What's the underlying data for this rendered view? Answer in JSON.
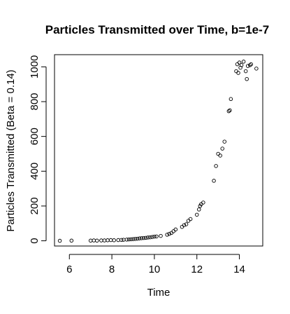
{
  "chart_data": {
    "type": "scatter",
    "title": "Particles Transmitted over Time, b=1e-7",
    "xlabel": "Time",
    "ylabel": "Particles Transmitted (Beta = 0.14)",
    "xlim": [
      5.3,
      15.1
    ],
    "ylim": [
      -30,
      1070
    ],
    "x_ticks": [
      6,
      8,
      10,
      12,
      14
    ],
    "y_ticks": [
      0,
      200,
      400,
      600,
      800,
      1000
    ],
    "grid": false,
    "legend": "none",
    "marker": "open-circle",
    "points": [
      [
        5.55,
        0
      ],
      [
        6.1,
        1
      ],
      [
        7.0,
        1
      ],
      [
        7.15,
        2
      ],
      [
        7.3,
        1
      ],
      [
        7.5,
        2
      ],
      [
        7.65,
        2
      ],
      [
        7.8,
        3
      ],
      [
        7.95,
        4
      ],
      [
        8.1,
        3
      ],
      [
        8.3,
        4
      ],
      [
        8.45,
        5
      ],
      [
        8.55,
        6
      ],
      [
        8.7,
        7
      ],
      [
        8.8,
        8
      ],
      [
        8.9,
        9
      ],
      [
        9.0,
        10
      ],
      [
        9.1,
        11
      ],
      [
        9.2,
        12
      ],
      [
        9.3,
        14
      ],
      [
        9.4,
        15
      ],
      [
        9.5,
        16
      ],
      [
        9.6,
        17
      ],
      [
        9.7,
        19
      ],
      [
        9.8,
        20
      ],
      [
        9.9,
        22
      ],
      [
        10.0,
        24
      ],
      [
        10.1,
        25
      ],
      [
        10.3,
        28
      ],
      [
        10.6,
        35
      ],
      [
        10.7,
        40
      ],
      [
        10.8,
        45
      ],
      [
        10.9,
        55
      ],
      [
        11.0,
        65
      ],
      [
        11.3,
        80
      ],
      [
        11.4,
        90
      ],
      [
        11.5,
        95
      ],
      [
        11.6,
        115
      ],
      [
        11.7,
        125
      ],
      [
        12.0,
        150
      ],
      [
        12.1,
        180
      ],
      [
        12.15,
        200
      ],
      [
        12.2,
        210
      ],
      [
        12.3,
        220
      ],
      [
        12.8,
        345
      ],
      [
        12.9,
        430
      ],
      [
        13.0,
        500
      ],
      [
        13.1,
        490
      ],
      [
        13.2,
        530
      ],
      [
        13.3,
        570
      ],
      [
        13.5,
        745
      ],
      [
        13.55,
        750
      ],
      [
        13.6,
        815
      ],
      [
        13.85,
        975
      ],
      [
        13.9,
        1015
      ],
      [
        13.95,
        965
      ],
      [
        14.0,
        1025
      ],
      [
        14.05,
        995
      ],
      [
        14.1,
        1010
      ],
      [
        14.2,
        1030
      ],
      [
        14.3,
        975
      ],
      [
        14.35,
        930
      ],
      [
        14.4,
        1005
      ],
      [
        14.5,
        1010
      ],
      [
        14.55,
        1015
      ],
      [
        14.8,
        990
      ]
    ]
  }
}
